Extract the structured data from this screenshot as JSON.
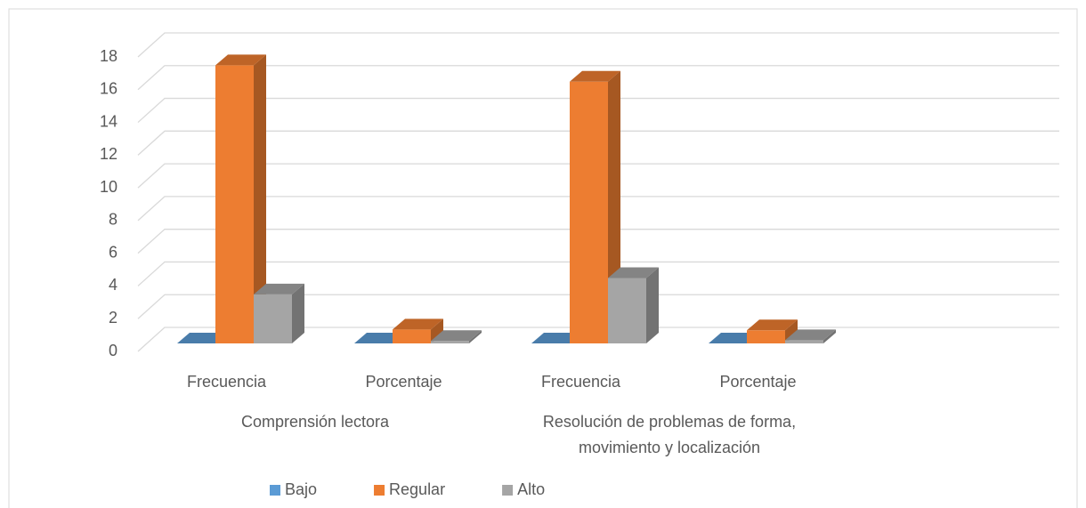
{
  "chart_data": {
    "type": "bar3d",
    "categories": [
      "Frecuencia",
      "Porcentaje",
      "Frecuencia",
      "Porcentaje"
    ],
    "group_labels": [
      [
        "Comprensión lectora"
      ],
      [
        "Resolución de problemas de forma,",
        "movimiento y localización"
      ]
    ],
    "series": [
      {
        "name": "Bajo",
        "color": "#5b9bd5",
        "values": [
          0,
          0,
          0,
          0
        ]
      },
      {
        "name": "Regular",
        "color": "#ed7d31",
        "values": [
          17,
          0.85,
          16,
          0.8
        ]
      },
      {
        "name": "Alto",
        "color": "#a5a5a5",
        "values": [
          3,
          0.15,
          4,
          0.2
        ]
      }
    ],
    "ylim": [
      0,
      18
    ],
    "yticks": [
      0,
      2,
      4,
      6,
      8,
      10,
      12,
      14,
      16,
      18
    ],
    "grid": true,
    "legend": "bottom"
  }
}
